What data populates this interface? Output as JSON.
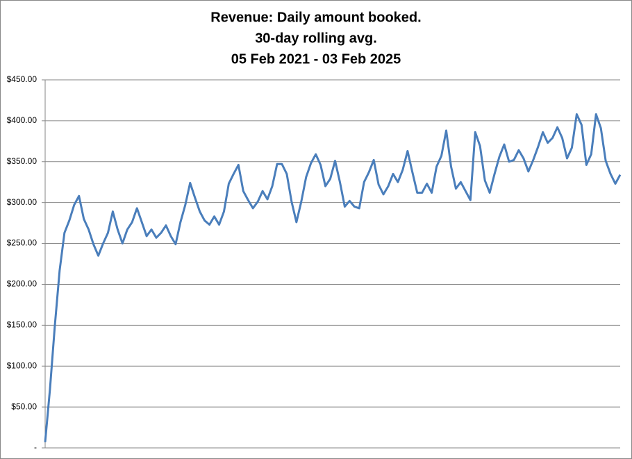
{
  "chart_data": {
    "type": "line",
    "title": [
      "Revenue: Daily amount booked.",
      "30-day rolling avg.",
      "05 Feb 2021 - 03 Feb 2025"
    ],
    "ylim": [
      0,
      450
    ],
    "yticks": [
      {
        "value": 0,
        "label": "-"
      },
      {
        "value": 50,
        "label": "$50.00"
      },
      {
        "value": 100,
        "label": "$100.00"
      },
      {
        "value": 150,
        "label": "$150.00"
      },
      {
        "value": 200,
        "label": "$200.00"
      },
      {
        "value": 250,
        "label": "$250.00"
      },
      {
        "value": 300,
        "label": "$300.00"
      },
      {
        "value": 350,
        "label": "$350.00"
      },
      {
        "value": 400,
        "label": "$400.00"
      },
      {
        "value": 450,
        "label": "$450.00"
      }
    ],
    "grid": true,
    "color": "#4a7ebb",
    "values": [
      7,
      72,
      149,
      217,
      263,
      278,
      297,
      308,
      280,
      267,
      249,
      235,
      250,
      263,
      289,
      267,
      250,
      267,
      276,
      293,
      276,
      259,
      267,
      257,
      263,
      272,
      259,
      249,
      276,
      297,
      324,
      306,
      289,
      278,
      273,
      283,
      273,
      289,
      323,
      335,
      346,
      314,
      303,
      293,
      301,
      314,
      304,
      320,
      347,
      347,
      335,
      301,
      276,
      301,
      331,
      348,
      359,
      346,
      320,
      329,
      351,
      325,
      295,
      302,
      295,
      293,
      325,
      337,
      352,
      322,
      310,
      320,
      335,
      325,
      340,
      363,
      337,
      312,
      312,
      323,
      312,
      344,
      357,
      388,
      344,
      317,
      325,
      314,
      303,
      386,
      369,
      327,
      312,
      335,
      356,
      371,
      350,
      352,
      364,
      354,
      338,
      352,
      368,
      386,
      373,
      379,
      392,
      379,
      354,
      367,
      408,
      395,
      346,
      359,
      408,
      391,
      351,
      335,
      323,
      334
    ]
  }
}
